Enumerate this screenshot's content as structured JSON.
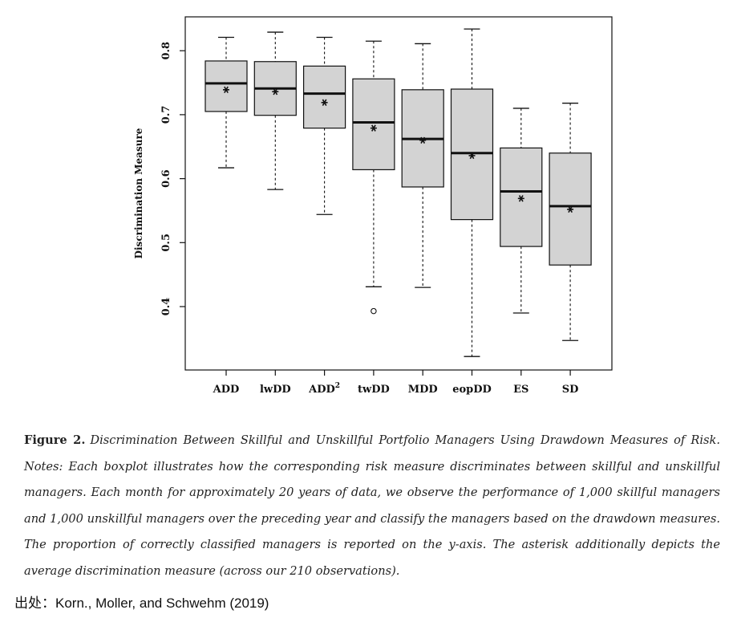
{
  "chart_data": {
    "type": "boxplot",
    "ylabel": "Discrimination Measure",
    "ylim": [
      0.3,
      0.85
    ],
    "yticks": [
      "0.4",
      "0.5",
      "0.6",
      "0.7",
      "0.8"
    ],
    "grid": false,
    "categories": [
      {
        "label": "ADD",
        "sup": ""
      },
      {
        "label": "lwDD",
        "sup": ""
      },
      {
        "label": "ADD",
        "sup": "2"
      },
      {
        "label": "twDD",
        "sup": ""
      },
      {
        "label": "MDD",
        "sup": ""
      },
      {
        "label": "eopDD",
        "sup": ""
      },
      {
        "label": "ES",
        "sup": ""
      },
      {
        "label": "SD",
        "sup": ""
      }
    ],
    "boxes": [
      {
        "whisker_low": 0.617,
        "q1": 0.705,
        "median": 0.749,
        "q3": 0.784,
        "whisker_high": 0.821,
        "mean": 0.739,
        "outliers": []
      },
      {
        "whisker_low": 0.583,
        "q1": 0.699,
        "median": 0.741,
        "q3": 0.783,
        "whisker_high": 0.829,
        "mean": 0.736,
        "outliers": []
      },
      {
        "whisker_low": 0.544,
        "q1": 0.679,
        "median": 0.733,
        "q3": 0.776,
        "whisker_high": 0.821,
        "mean": 0.719,
        "outliers": []
      },
      {
        "whisker_low": 0.431,
        "q1": 0.614,
        "median": 0.688,
        "q3": 0.756,
        "whisker_high": 0.815,
        "mean": 0.679,
        "outliers": [
          0.393
        ]
      },
      {
        "whisker_low": 0.43,
        "q1": 0.587,
        "median": 0.662,
        "q3": 0.739,
        "whisker_high": 0.811,
        "mean": 0.66,
        "outliers": []
      },
      {
        "whisker_low": 0.322,
        "q1": 0.536,
        "median": 0.64,
        "q3": 0.74,
        "whisker_high": 0.834,
        "mean": 0.636,
        "outliers": []
      },
      {
        "whisker_low": 0.39,
        "q1": 0.494,
        "median": 0.58,
        "q3": 0.648,
        "whisker_high": 0.71,
        "mean": 0.569,
        "outliers": []
      },
      {
        "whisker_low": 0.347,
        "q1": 0.465,
        "median": 0.557,
        "q3": 0.64,
        "whisker_high": 0.718,
        "mean": 0.552,
        "outliers": []
      }
    ],
    "colors": {
      "box_fill": "#d3d3d3",
      "line": "#111111"
    }
  },
  "caption": {
    "label": "Figure 2.",
    "text": "Discrimination Between Skillful and Unskillful Portfolio Managers Using Drawdown Measures of Risk. Notes: Each boxplot illustrates how the corresponding risk measure discriminates between skillful and unskillful managers. Each month for approximately 20 years of data, we observe the performance of 1,000 skillful managers and 1,000 unskillful managers over the preceding year and classify the managers based on the drawdown measures. The proportion of correctly classified managers is reported on the y-axis. The asterisk additionally depicts the average discrimination measure (across our 210 observations)."
  },
  "source": "出处：Korn., Moller, and Schwehm (2019)"
}
